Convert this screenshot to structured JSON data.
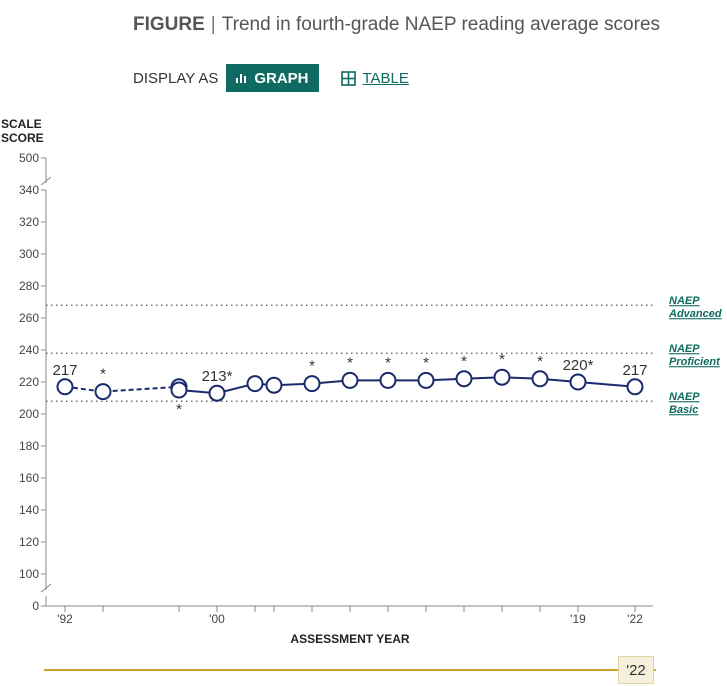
{
  "figure": {
    "label": "FIGURE",
    "separator": "|",
    "title": "Trend in fourth-grade NAEP reading average scores"
  },
  "display": {
    "label": "DISPLAY AS",
    "graph_label": "GRAPH",
    "table_label": "TABLE",
    "accent_color": "#0f6b61"
  },
  "chart_data": {
    "type": "line",
    "ylabel_line1": "SCALE",
    "ylabel_line2": "SCORE",
    "xlabel": "ASSESSMENT YEAR",
    "y_ticks": [
      100,
      120,
      140,
      160,
      180,
      200,
      220,
      240,
      260,
      280,
      300,
      320,
      340
    ],
    "y_top_tick": 500,
    "y_bottom_tick": 0,
    "ylim": [
      100,
      340
    ],
    "xlim": [
      1992,
      2022
    ],
    "x_ticks": [
      {
        "x": 1992,
        "label": "'92"
      },
      {
        "x": 1994,
        "label": ""
      },
      {
        "x": 1998,
        "label": ""
      },
      {
        "x": 2000,
        "label": "'00"
      },
      {
        "x": 2002,
        "label": ""
      },
      {
        "x": 2003,
        "label": ""
      },
      {
        "x": 2005,
        "label": ""
      },
      {
        "x": 2007,
        "label": ""
      },
      {
        "x": 2009,
        "label": ""
      },
      {
        "x": 2011,
        "label": ""
      },
      {
        "x": 2013,
        "label": ""
      },
      {
        "x": 2015,
        "label": ""
      },
      {
        "x": 2017,
        "label": ""
      },
      {
        "x": 2019,
        "label": "'19"
      },
      {
        "x": 2022,
        "label": "'22"
      }
    ],
    "series_a": [
      {
        "x": 1992,
        "y": 217,
        "label": "217",
        "mark": ""
      },
      {
        "x": 1994,
        "y": 214,
        "label": "",
        "mark": "*"
      },
      {
        "x": 1998,
        "y": 217,
        "label": "",
        "mark": ""
      }
    ],
    "series_b": [
      {
        "x": 1998,
        "y": 215,
        "label": "",
        "mark": "*"
      },
      {
        "x": 2000,
        "y": 213,
        "label": "213*",
        "mark": ""
      },
      {
        "x": 2002,
        "y": 219,
        "label": "",
        "mark": ""
      },
      {
        "x": 2003,
        "y": 218,
        "label": "",
        "mark": ""
      },
      {
        "x": 2005,
        "y": 219,
        "label": "",
        "mark": "*"
      },
      {
        "x": 2007,
        "y": 221,
        "label": "",
        "mark": "*"
      },
      {
        "x": 2009,
        "y": 221,
        "label": "",
        "mark": "*"
      },
      {
        "x": 2011,
        "y": 221,
        "label": "",
        "mark": "*"
      },
      {
        "x": 2013,
        "y": 222,
        "label": "",
        "mark": "*"
      },
      {
        "x": 2015,
        "y": 223,
        "label": "",
        "mark": "*"
      },
      {
        "x": 2017,
        "y": 222,
        "label": "",
        "mark": "*"
      },
      {
        "x": 2019,
        "y": 220,
        "label": "220*",
        "mark": ""
      },
      {
        "x": 2022,
        "y": 217,
        "label": "217",
        "mark": ""
      }
    ],
    "reference_lines": [
      {
        "value": 268,
        "line1": "NAEP",
        "line2": "Advanced"
      },
      {
        "value": 238,
        "line1": "NAEP",
        "line2": "Proficient"
      },
      {
        "value": 208,
        "line1": "NAEP",
        "line2": "Basic"
      }
    ],
    "line_color": "#1a2a6c"
  },
  "slider": {
    "value": "'22"
  }
}
